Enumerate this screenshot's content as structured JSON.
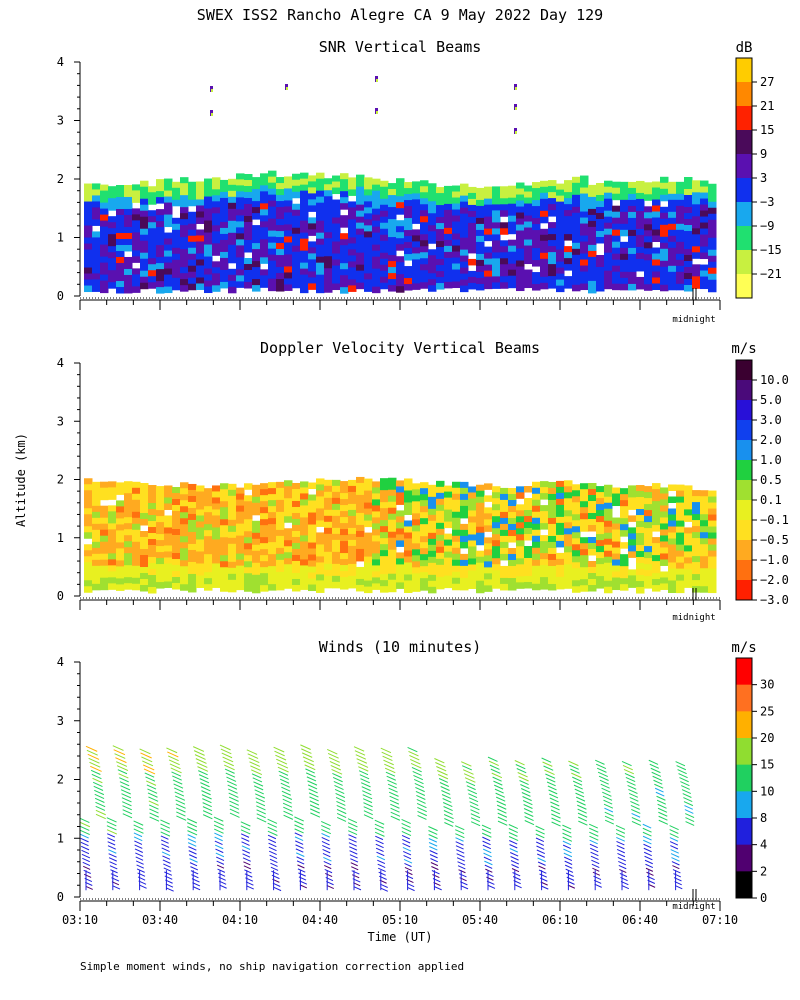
{
  "figure": {
    "title": "SWEX ISS2 Rancho Alegre CA   9 May 2022 Day 129",
    "ylabel": "Altitude (km)",
    "xlabel": "Time (UT)",
    "midnight_label": "midnight",
    "footnote": "Simple moment winds, no ship navigation correction applied"
  },
  "chart_data": [
    {
      "type": "heatmap",
      "title": "SNR Vertical Beams",
      "ylabel": "Altitude (km)",
      "ylim": [
        0,
        4
      ],
      "yticks": [
        "0",
        "1",
        "2",
        "3",
        "4"
      ],
      "colorbar": {
        "unit": "dB",
        "labels": [
          "27",
          "21",
          "15",
          "9",
          "3",
          "−3",
          "−9",
          "−15",
          "−21"
        ],
        "colors": [
          "#ffcc00",
          "#ff8800",
          "#ff2200",
          "#4a0a5a",
          "#5a10b0",
          "#1030ee",
          "#18a8ee",
          "#20e070",
          "#c8f040",
          "#ffff55"
        ]
      },
      "data_top_km": 2.05,
      "data_bottom_km": 0.15
    },
    {
      "type": "heatmap",
      "title": "Doppler Velocity Vertical Beams",
      "ylim": [
        0,
        4
      ],
      "yticks": [
        "0",
        "1",
        "2",
        "3",
        "4"
      ],
      "colorbar": {
        "unit": "m/s",
        "labels": [
          "10.0",
          "5.0",
          "3.0",
          "2.0",
          "1.0",
          "0.5",
          "0.1",
          "−0.1",
          "−0.5",
          "−1.0",
          "−2.0",
          "−3.0"
        ],
        "colors": [
          "#3a0030",
          "#4a0a7a",
          "#2810d8",
          "#1040ee",
          "#1890ee",
          "#20d040",
          "#a0e030",
          "#e8f020",
          "#ffe020",
          "#ffaa20",
          "#ff7010",
          "#ff2000"
        ]
      },
      "data_top_km": 2.0,
      "data_bottom_km": 0.15
    },
    {
      "type": "scatter",
      "title": "Winds (10 minutes)",
      "xlabel": "Time (UT)",
      "ylim": [
        0,
        4
      ],
      "yticks": [
        "0",
        "1",
        "2",
        "3",
        "4"
      ],
      "x": [
        "03:10",
        "03:40",
        "04:10",
        "04:40",
        "05:10",
        "05:40",
        "06:10",
        "06:40",
        "07:10"
      ],
      "wind_profile_count": 23,
      "colorbar": {
        "unit": "m/s",
        "labels": [
          "30",
          "25",
          "20",
          "15",
          "10",
          "8",
          "4",
          "2",
          "0"
        ],
        "colors": [
          "#ff0000",
          "#ff7020",
          "#ffb000",
          "#90dd30",
          "#20d060",
          "#18a8ee",
          "#2020dd",
          "#500070",
          "#000000"
        ]
      },
      "data_top_km": 2.6,
      "data_bottom_km": 0.15
    }
  ]
}
